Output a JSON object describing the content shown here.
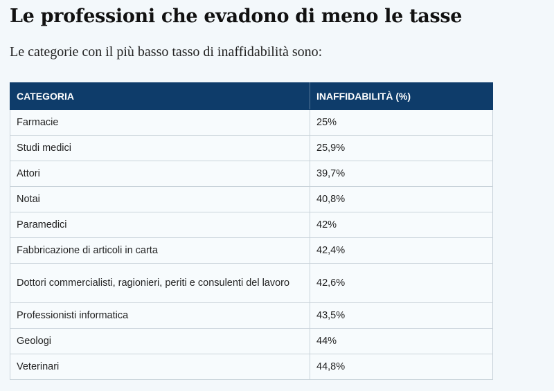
{
  "article": {
    "title": "Le professioni che evadono di meno le tasse",
    "intro": "Le categorie con il più basso tasso di inaffidabilità sono:"
  },
  "table": {
    "headers": {
      "category": "CATEGORIA",
      "value": "INAFFIDABILITÀ (%)"
    },
    "rows": [
      {
        "category": "Farmacie",
        "value": "25%"
      },
      {
        "category": "Studi medici",
        "value": "25,9%"
      },
      {
        "category": "Attori",
        "value": "39,7%"
      },
      {
        "category": "Notai",
        "value": "40,8%"
      },
      {
        "category": "Paramedici",
        "value": "42%"
      },
      {
        "category": "Fabbricazione di articoli in carta",
        "value": "42,4%"
      },
      {
        "category": "Dottori commercialisti, ragionieri, periti e consulenti del lavoro",
        "value": "42,6%"
      },
      {
        "category": "Professionisti informatica",
        "value": "43,5%"
      },
      {
        "category": "Geologi",
        "value": "44%"
      },
      {
        "category": "Veterinari",
        "value": "44,8%"
      }
    ]
  },
  "colors": {
    "header_bg": "#0e3c6a",
    "page_bg": "#f3f8fb"
  }
}
